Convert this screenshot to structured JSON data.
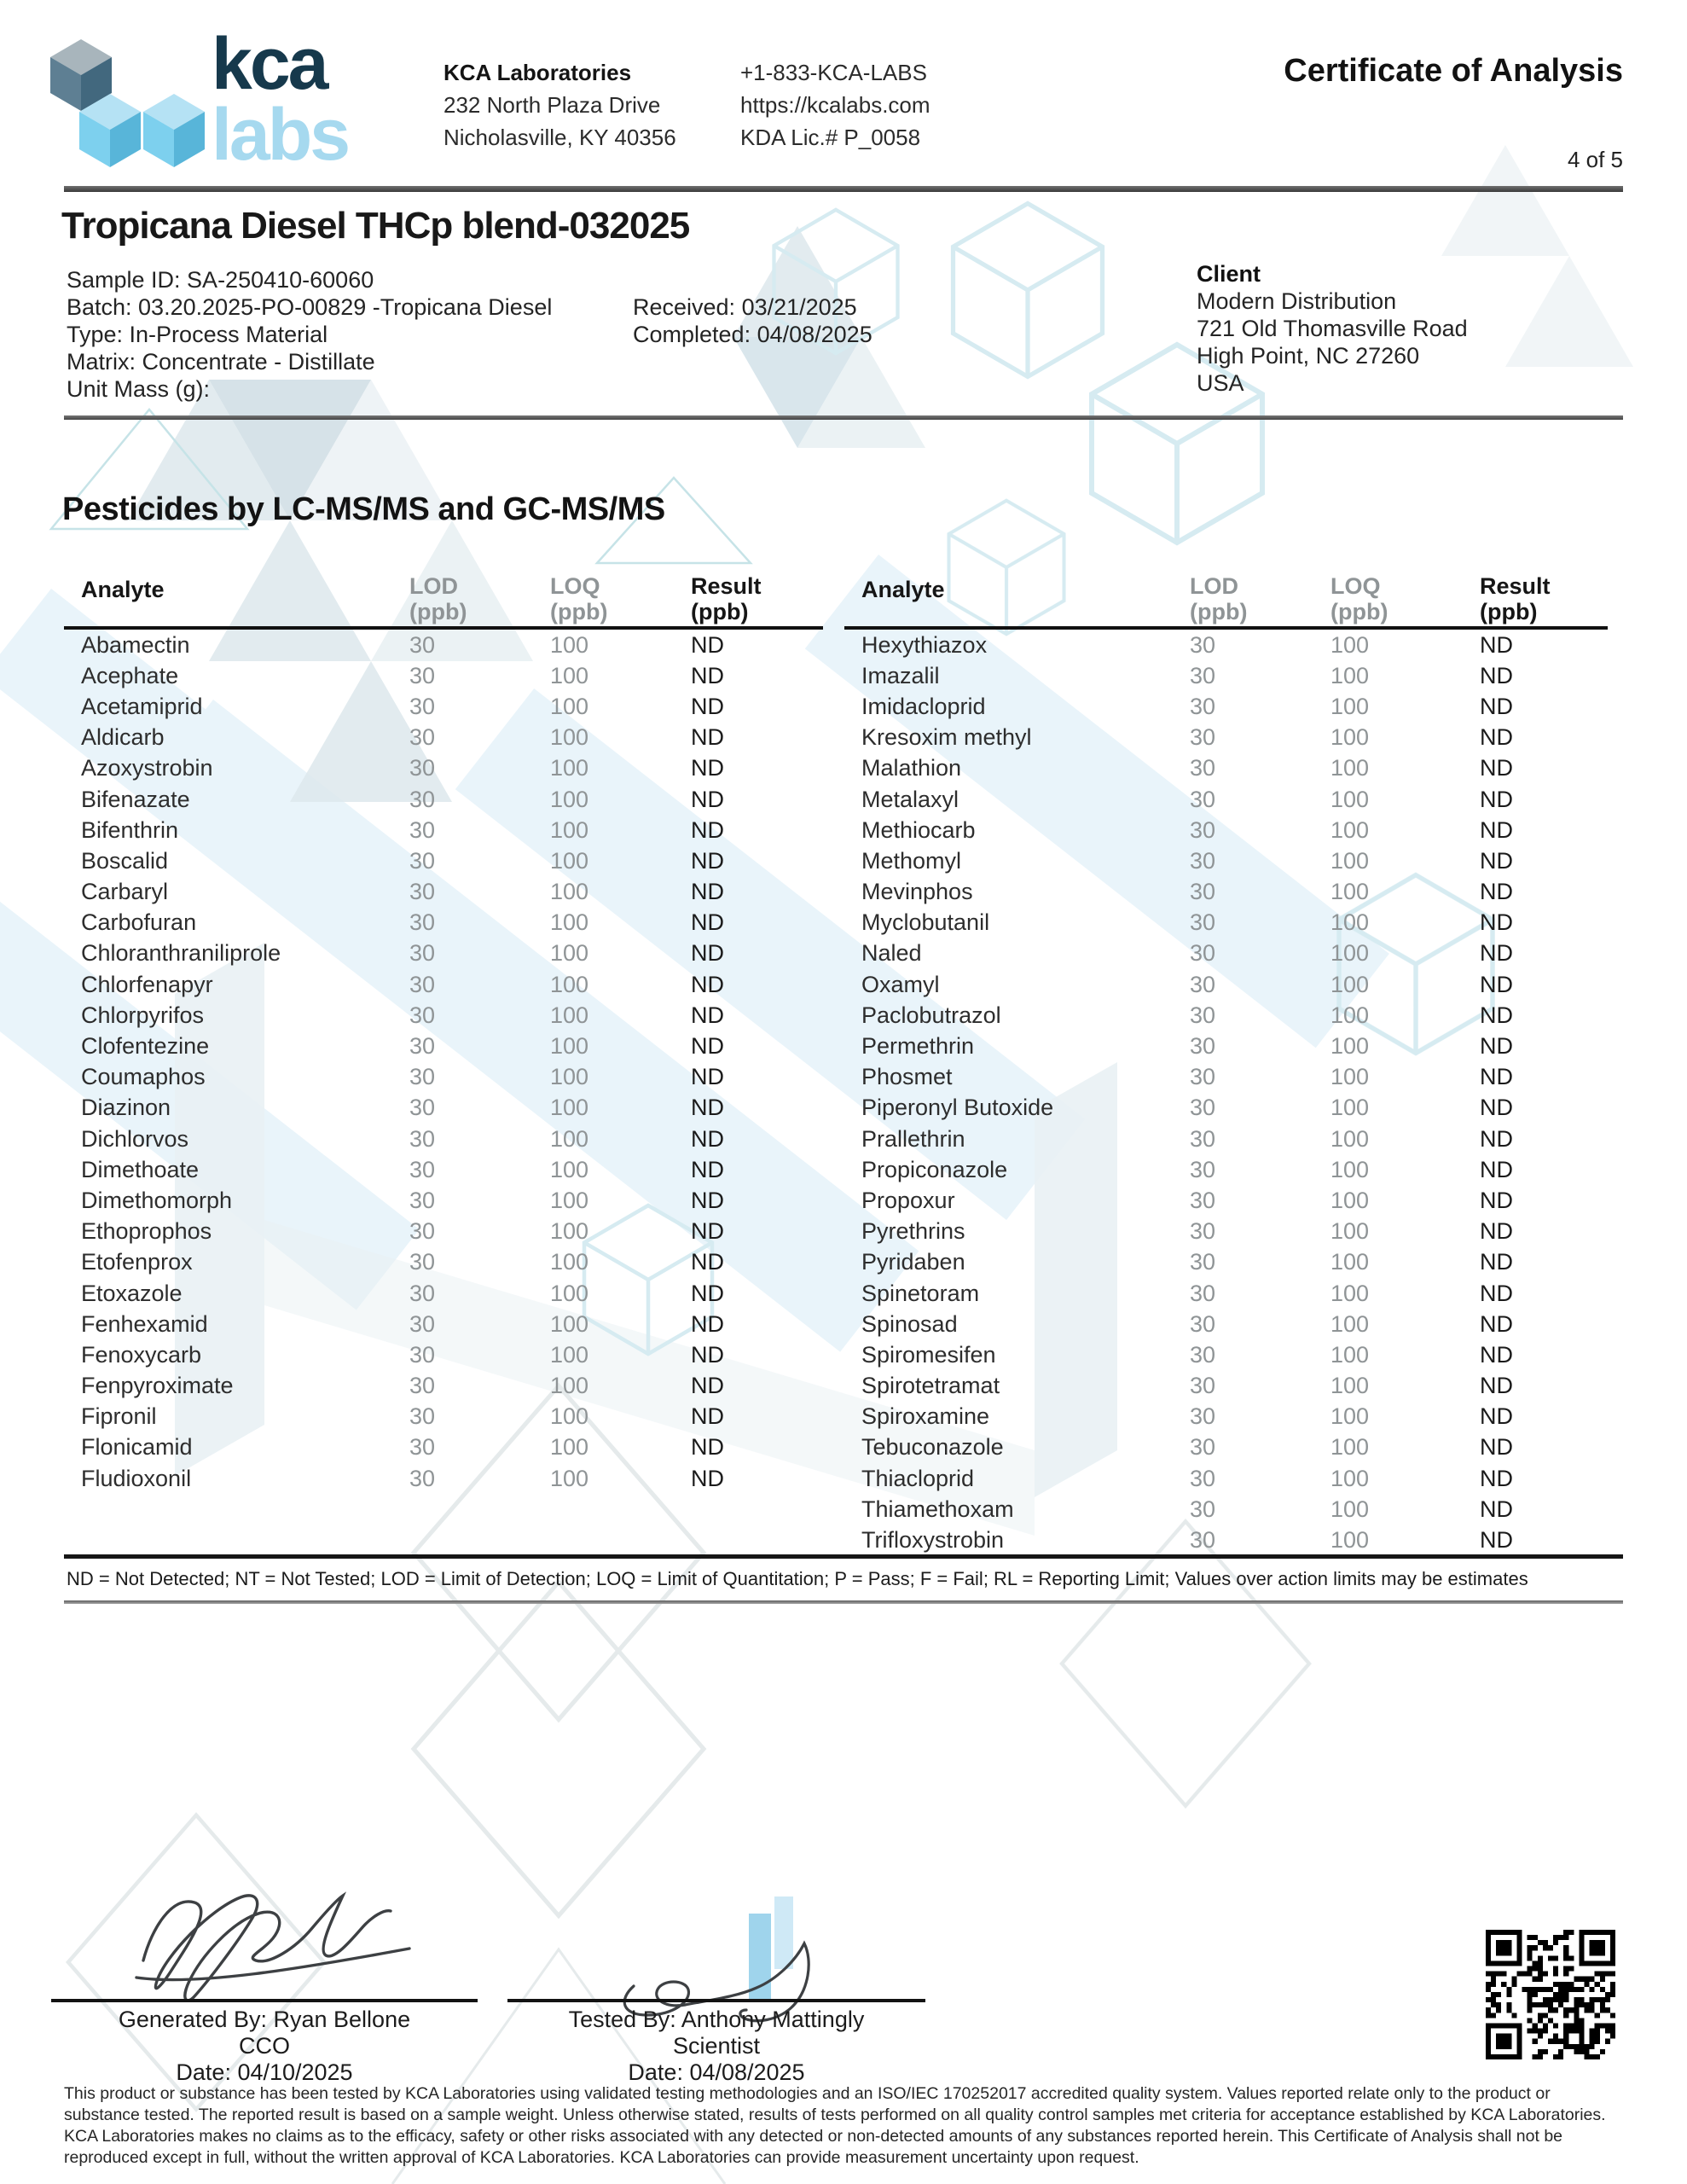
{
  "header": {
    "logo_kca": "kca",
    "logo_labs": "labs",
    "lab_name": "KCA Laboratories",
    "address_line1": "232 North Plaza Drive",
    "address_line2": "Nicholasville, KY 40356",
    "phone": "+1-833-KCA-LABS",
    "website": "https://kcalabs.com",
    "license": "KDA Lic.# P_0058",
    "doc_title": "Certificate of Analysis",
    "page_indicator": "4 of 5"
  },
  "sample": {
    "title": "Tropicana Diesel THCp blend-032025",
    "lines": [
      "Sample ID: SA-250410-60060",
      "Batch: 03.20.2025-PO-00829 -Tropicana Diesel",
      "Type: In-Process Material",
      "Matrix: Concentrate - Distillate",
      "Unit Mass (g):"
    ],
    "received": "Received: 03/21/2025",
    "completed": "Completed: 04/08/2025"
  },
  "client": {
    "heading": "Client",
    "lines": [
      "Modern Distribution",
      "721 Old Thomasville Road",
      "High Point, NC 27260",
      "USA"
    ]
  },
  "section": {
    "heading": "Pesticides by LC-MS/MS and GC-MS/MS"
  },
  "table": {
    "headers": {
      "analyte": "Analyte",
      "lod": "LOD",
      "loq": "LOQ",
      "result": "Result",
      "unit": "(ppb)"
    },
    "left_rows": [
      {
        "analyte": "Abamectin",
        "lod": "30",
        "loq": "100",
        "result": "ND"
      },
      {
        "analyte": "Acephate",
        "lod": "30",
        "loq": "100",
        "result": "ND"
      },
      {
        "analyte": "Acetamiprid",
        "lod": "30",
        "loq": "100",
        "result": "ND"
      },
      {
        "analyte": "Aldicarb",
        "lod": "30",
        "loq": "100",
        "result": "ND"
      },
      {
        "analyte": "Azoxystrobin",
        "lod": "30",
        "loq": "100",
        "result": "ND"
      },
      {
        "analyte": "Bifenazate",
        "lod": "30",
        "loq": "100",
        "result": "ND"
      },
      {
        "analyte": "Bifenthrin",
        "lod": "30",
        "loq": "100",
        "result": "ND"
      },
      {
        "analyte": "Boscalid",
        "lod": "30",
        "loq": "100",
        "result": "ND"
      },
      {
        "analyte": "Carbaryl",
        "lod": "30",
        "loq": "100",
        "result": "ND"
      },
      {
        "analyte": "Carbofuran",
        "lod": "30",
        "loq": "100",
        "result": "ND"
      },
      {
        "analyte": "Chloranthraniliprole",
        "lod": "30",
        "loq": "100",
        "result": "ND"
      },
      {
        "analyte": "Chlorfenapyr",
        "lod": "30",
        "loq": "100",
        "result": "ND"
      },
      {
        "analyte": "Chlorpyrifos",
        "lod": "30",
        "loq": "100",
        "result": "ND"
      },
      {
        "analyte": "Clofentezine",
        "lod": "30",
        "loq": "100",
        "result": "ND"
      },
      {
        "analyte": "Coumaphos",
        "lod": "30",
        "loq": "100",
        "result": "ND"
      },
      {
        "analyte": "Diazinon",
        "lod": "30",
        "loq": "100",
        "result": "ND"
      },
      {
        "analyte": "Dichlorvos",
        "lod": "30",
        "loq": "100",
        "result": "ND"
      },
      {
        "analyte": "Dimethoate",
        "lod": "30",
        "loq": "100",
        "result": "ND"
      },
      {
        "analyte": "Dimethomorph",
        "lod": "30",
        "loq": "100",
        "result": "ND"
      },
      {
        "analyte": "Ethoprophos",
        "lod": "30",
        "loq": "100",
        "result": "ND"
      },
      {
        "analyte": "Etofenprox",
        "lod": "30",
        "loq": "100",
        "result": "ND"
      },
      {
        "analyte": "Etoxazole",
        "lod": "30",
        "loq": "100",
        "result": "ND"
      },
      {
        "analyte": "Fenhexamid",
        "lod": "30",
        "loq": "100",
        "result": "ND"
      },
      {
        "analyte": "Fenoxycarb",
        "lod": "30",
        "loq": "100",
        "result": "ND"
      },
      {
        "analyte": "Fenpyroximate",
        "lod": "30",
        "loq": "100",
        "result": "ND"
      },
      {
        "analyte": "Fipronil",
        "lod": "30",
        "loq": "100",
        "result": "ND"
      },
      {
        "analyte": "Flonicamid",
        "lod": "30",
        "loq": "100",
        "result": "ND"
      },
      {
        "analyte": "Fludioxonil",
        "lod": "30",
        "loq": "100",
        "result": "ND"
      }
    ],
    "right_rows": [
      {
        "analyte": "Hexythiazox",
        "lod": "30",
        "loq": "100",
        "result": "ND"
      },
      {
        "analyte": "Imazalil",
        "lod": "30",
        "loq": "100",
        "result": "ND"
      },
      {
        "analyte": "Imidacloprid",
        "lod": "30",
        "loq": "100",
        "result": "ND"
      },
      {
        "analyte": "Kresoxim methyl",
        "lod": "30",
        "loq": "100",
        "result": "ND"
      },
      {
        "analyte": "Malathion",
        "lod": "30",
        "loq": "100",
        "result": "ND"
      },
      {
        "analyte": "Metalaxyl",
        "lod": "30",
        "loq": "100",
        "result": "ND"
      },
      {
        "analyte": "Methiocarb",
        "lod": "30",
        "loq": "100",
        "result": "ND"
      },
      {
        "analyte": "Methomyl",
        "lod": "30",
        "loq": "100",
        "result": "ND"
      },
      {
        "analyte": "Mevinphos",
        "lod": "30",
        "loq": "100",
        "result": "ND"
      },
      {
        "analyte": "Myclobutanil",
        "lod": "30",
        "loq": "100",
        "result": "ND"
      },
      {
        "analyte": "Naled",
        "lod": "30",
        "loq": "100",
        "result": "ND"
      },
      {
        "analyte": "Oxamyl",
        "lod": "30",
        "loq": "100",
        "result": "ND"
      },
      {
        "analyte": "Paclobutrazol",
        "lod": "30",
        "loq": "100",
        "result": "ND"
      },
      {
        "analyte": "Permethrin",
        "lod": "30",
        "loq": "100",
        "result": "ND"
      },
      {
        "analyte": "Phosmet",
        "lod": "30",
        "loq": "100",
        "result": "ND"
      },
      {
        "analyte": "Piperonyl Butoxide",
        "lod": "30",
        "loq": "100",
        "result": "ND"
      },
      {
        "analyte": "Prallethrin",
        "lod": "30",
        "loq": "100",
        "result": "ND"
      },
      {
        "analyte": "Propiconazole",
        "lod": "30",
        "loq": "100",
        "result": "ND"
      },
      {
        "analyte": "Propoxur",
        "lod": "30",
        "loq": "100",
        "result": "ND"
      },
      {
        "analyte": "Pyrethrins",
        "lod": "30",
        "loq": "100",
        "result": "ND"
      },
      {
        "analyte": "Pyridaben",
        "lod": "30",
        "loq": "100",
        "result": "ND"
      },
      {
        "analyte": "Spinetoram",
        "lod": "30",
        "loq": "100",
        "result": "ND"
      },
      {
        "analyte": "Spinosad",
        "lod": "30",
        "loq": "100",
        "result": "ND"
      },
      {
        "analyte": "Spiromesifen",
        "lod": "30",
        "loq": "100",
        "result": "ND"
      },
      {
        "analyte": "Spirotetramat",
        "lod": "30",
        "loq": "100",
        "result": "ND"
      },
      {
        "analyte": "Spiroxamine",
        "lod": "30",
        "loq": "100",
        "result": "ND"
      },
      {
        "analyte": "Tebuconazole",
        "lod": "30",
        "loq": "100",
        "result": "ND"
      },
      {
        "analyte": "Thiacloprid",
        "lod": "30",
        "loq": "100",
        "result": "ND"
      },
      {
        "analyte": "Thiamethoxam",
        "lod": "30",
        "loq": "100",
        "result": "ND"
      },
      {
        "analyte": "Trifloxystrobin",
        "lod": "30",
        "loq": "100",
        "result": "ND"
      }
    ]
  },
  "legend": "ND = Not Detected; NT = Not Tested; LOD = Limit of Detection; LOQ = Limit of Quantitation; P = Pass; F = Fail; RL = Reporting Limit; Values over action limits may be estimates",
  "signatures": {
    "generated_by": "Generated By: Ryan Bellone",
    "generated_title": "CCO",
    "generated_date": "Date: 04/10/2025",
    "tested_by": "Tested By: Anthony Mattingly",
    "tested_title": "Scientist",
    "tested_date": "Date: 04/08/2025"
  },
  "disclaimer": "This product or substance has been tested by KCA Laboratories using validated testing methodologies and an ISO/IEC 170252017 accredited quality system. Values reported relate only to the product or substance tested. The reported result is based on a sample weight. Unless otherwise stated, results of tests performed on all quality control samples met criteria for acceptance established by KCA Laboratories. KCA Laboratories makes no claims as to the efficacy, safety or other risks associated with any detected or non-detected amounts of any substances reported herein. This Certificate of Analysis shall not be reproduced except in full, without the written approval of KCA Laboratories. KCA Laboratories can provide measurement uncertainty upon request.",
  "colors": {
    "brand_dark": "#16394c",
    "brand_light_blue": "#a6d9ef",
    "cube_blue_top": "#b5e2f4",
    "cube_blue_left": "#7dd0ee",
    "cube_blue_right": "#58b5d9",
    "cube_gray_top": "#a8b5bc",
    "cube_gray_left": "#5e7f93",
    "cube_gray_right": "#42687e",
    "value_gray": "#8f9496",
    "watermark_blue": "#ddeef8"
  }
}
